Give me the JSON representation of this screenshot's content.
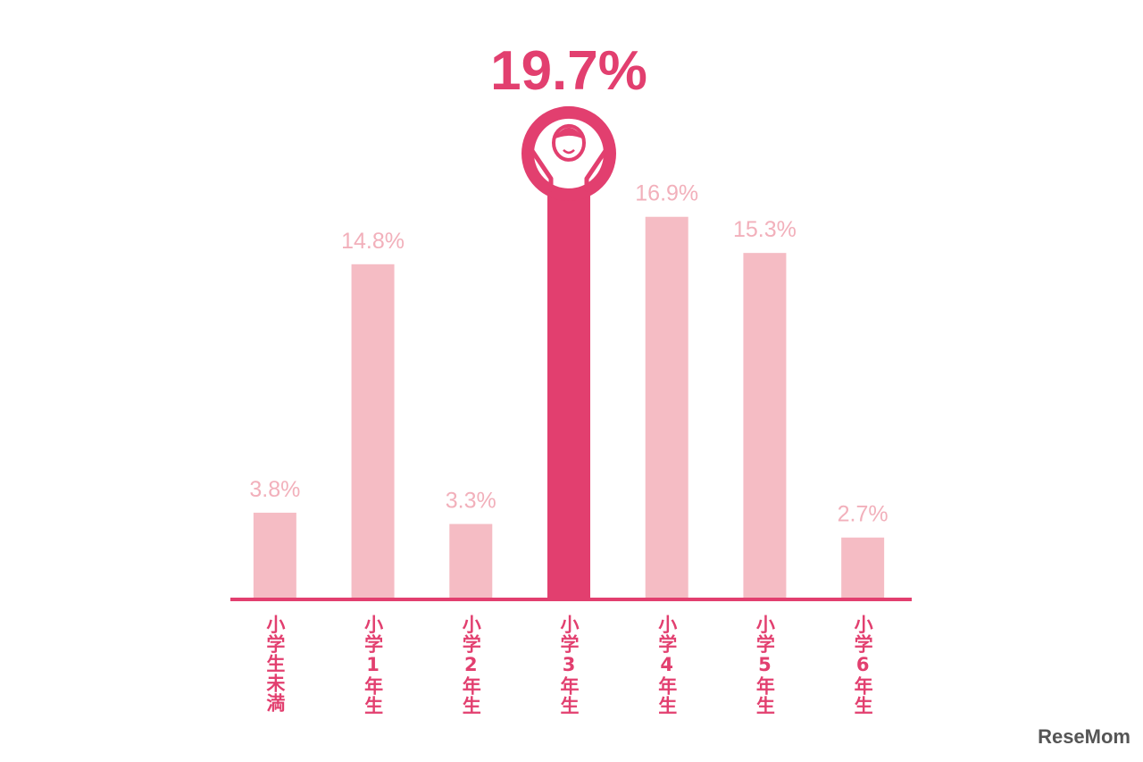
{
  "chart_data": {
    "type": "bar",
    "categories": [
      "小学生未満",
      "小学1年生",
      "小学2年生",
      "小学3年生",
      "小学4年生",
      "小学5年生",
      "小学6年生"
    ],
    "values": [
      3.8,
      14.8,
      3.3,
      19.7,
      16.9,
      15.3,
      2.7
    ],
    "value_labels": [
      "3.8%",
      "14.8%",
      "3.3%",
      "19.7%",
      "16.9%",
      "15.3%",
      "2.7%"
    ],
    "colors": [
      "#f5bcc4",
      "#f5bcc4",
      "#f5bcc4",
      "#e23f6f",
      "#f5bcc4",
      "#f5bcc4",
      "#f5bcc4"
    ],
    "label_colors": [
      "#f2b0bb",
      "#f2b0bb",
      "#f2b0bb",
      "#e23f6f",
      "#f2b0bb",
      "#f2b0bb",
      "#f2b0bb"
    ],
    "highlight": 3,
    "axis_color": "#e23f6f",
    "ylim": [
      0,
      26.5
    ]
  },
  "watermark": "ReseMom"
}
